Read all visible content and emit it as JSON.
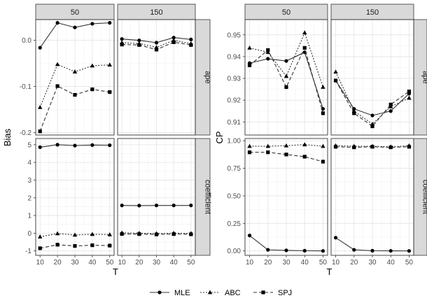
{
  "legend": {
    "items": [
      {
        "label": "MLE",
        "series": "mle",
        "marker": "circle",
        "dash": "solid"
      },
      {
        "label": "ABC",
        "series": "abc",
        "marker": "triangle",
        "dash": "dotted"
      },
      {
        "label": "SPJ",
        "series": "spj",
        "marker": "square",
        "dash": "dashed"
      }
    ]
  },
  "chart_data": [
    {
      "type": "line",
      "ylabel": "Bias",
      "xlabel": "T",
      "col_facets": [
        "50",
        "150"
      ],
      "row_facets": [
        "ape",
        "coefficient"
      ],
      "x": [
        10,
        20,
        30,
        40,
        50
      ],
      "x_ticks": [
        "10",
        "20",
        "30",
        "40",
        "50"
      ],
      "rows": [
        {
          "facet": "ape",
          "ylim": [
            -0.205,
            0.045
          ],
          "y_ticks": [
            0.0,
            -0.1,
            -0.2
          ],
          "y_tick_labels": [
            "0.0",
            "-0.1",
            "-0.2"
          ],
          "panels": [
            {
              "col": "50",
              "series": [
                {
                  "name": "MLE",
                  "values": [
                    -0.016,
                    0.038,
                    0.028,
                    0.036,
                    0.038
                  ]
                },
                {
                  "name": "ABC",
                  "values": [
                    -0.145,
                    -0.052,
                    -0.068,
                    -0.055,
                    -0.053
                  ]
                },
                {
                  "name": "SPJ",
                  "values": [
                    -0.197,
                    -0.099,
                    -0.118,
                    -0.106,
                    -0.112
                  ]
                }
              ]
            },
            {
              "col": "150",
              "series": [
                {
                  "name": "MLE",
                  "values": [
                    0.003,
                    0.0,
                    -0.005,
                    0.006,
                    0.002
                  ]
                },
                {
                  "name": "ABC",
                  "values": [
                    -0.005,
                    -0.007,
                    -0.015,
                    0.0,
                    -0.007
                  ]
                },
                {
                  "name": "SPJ",
                  "values": [
                    -0.009,
                    -0.01,
                    -0.02,
                    -0.004,
                    -0.01
                  ]
                }
              ]
            }
          ]
        },
        {
          "facet": "coefficient",
          "ylim": [
            -1.25,
            5.35
          ],
          "y_ticks": [
            5,
            4,
            3,
            2,
            1,
            0,
            -1
          ],
          "y_tick_labels": [
            "5",
            "4",
            "3",
            "2",
            "1",
            "0",
            "-1"
          ],
          "panels": [
            {
              "col": "50",
              "series": [
                {
                  "name": "MLE",
                  "values": [
                    4.86,
                    5.0,
                    4.95,
                    4.98,
                    4.97
                  ]
                },
                {
                  "name": "ABC",
                  "values": [
                    -0.2,
                    -0.02,
                    -0.1,
                    -0.06,
                    -0.08
                  ]
                },
                {
                  "name": "SPJ",
                  "values": [
                    -0.85,
                    -0.65,
                    -0.72,
                    -0.68,
                    -0.7
                  ]
                }
              ]
            },
            {
              "col": "150",
              "series": [
                {
                  "name": "MLE",
                  "values": [
                    1.57,
                    1.56,
                    1.57,
                    1.57,
                    1.57
                  ]
                },
                {
                  "name": "ABC",
                  "values": [
                    0.02,
                    0.0,
                    -0.02,
                    0.0,
                    -0.01
                  ]
                },
                {
                  "name": "SPJ",
                  "values": [
                    -0.04,
                    -0.05,
                    -0.07,
                    -0.05,
                    -0.06
                  ]
                }
              ]
            }
          ]
        }
      ]
    },
    {
      "type": "line",
      "ylabel": "CP",
      "xlabel": "T",
      "col_facets": [
        "50",
        "150"
      ],
      "row_facets": [
        "ape",
        "coefficient"
      ],
      "x": [
        10,
        20,
        30,
        40,
        50
      ],
      "x_ticks": [
        "10",
        "20",
        "30",
        "40",
        "50"
      ],
      "rows": [
        {
          "facet": "ape",
          "ylim": [
            0.904,
            0.957
          ],
          "y_ticks": [
            0.95,
            0.94,
            0.93,
            0.92,
            0.91
          ],
          "y_tick_labels": [
            "0.95",
            "0.94",
            "0.93",
            "0.92",
            "0.91"
          ],
          "panels": [
            {
              "col": "50",
              "series": [
                {
                  "name": "MLE",
                  "values": [
                    0.937,
                    0.939,
                    0.938,
                    0.942,
                    0.916
                  ]
                },
                {
                  "name": "ABC",
                  "values": [
                    0.944,
                    0.942,
                    0.931,
                    0.951,
                    0.926
                  ]
                },
                {
                  "name": "SPJ",
                  "values": [
                    0.936,
                    0.943,
                    0.926,
                    0.944,
                    0.914
                  ]
                }
              ]
            },
            {
              "col": "150",
              "series": [
                {
                  "name": "MLE",
                  "values": [
                    0.929,
                    0.916,
                    0.913,
                    0.915,
                    0.923
                  ]
                },
                {
                  "name": "ABC",
                  "values": [
                    0.933,
                    0.915,
                    0.909,
                    0.917,
                    0.921
                  ]
                },
                {
                  "name": "SPJ",
                  "values": [
                    0.929,
                    0.914,
                    0.908,
                    0.918,
                    0.924
                  ]
                }
              ]
            }
          ]
        },
        {
          "facet": "coefficient",
          "ylim": [
            -0.04,
            1.02
          ],
          "y_ticks": [
            1.0,
            0.75,
            0.5,
            0.25,
            0.0
          ],
          "y_tick_labels": [
            "1.00",
            "0.75",
            "0.50",
            "0.25",
            "0.00"
          ],
          "panels": [
            {
              "col": "50",
              "series": [
                {
                  "name": "MLE",
                  "values": [
                    0.14,
                    0.01,
                    0.005,
                    0.002,
                    0.0
                  ]
                },
                {
                  "name": "ABC",
                  "values": [
                    0.95,
                    0.95,
                    0.955,
                    0.965,
                    0.95
                  ]
                },
                {
                  "name": "SPJ",
                  "values": [
                    0.895,
                    0.895,
                    0.875,
                    0.855,
                    0.81
                  ]
                }
              ]
            },
            {
              "col": "150",
              "series": [
                {
                  "name": "MLE",
                  "values": [
                    0.12,
                    0.01,
                    0.002,
                    0.001,
                    0.0
                  ]
                },
                {
                  "name": "ABC",
                  "values": [
                    0.955,
                    0.95,
                    0.95,
                    0.945,
                    0.955
                  ]
                },
                {
                  "name": "SPJ",
                  "values": [
                    0.945,
                    0.94,
                    0.945,
                    0.94,
                    0.945
                  ]
                }
              ]
            }
          ]
        }
      ]
    }
  ]
}
